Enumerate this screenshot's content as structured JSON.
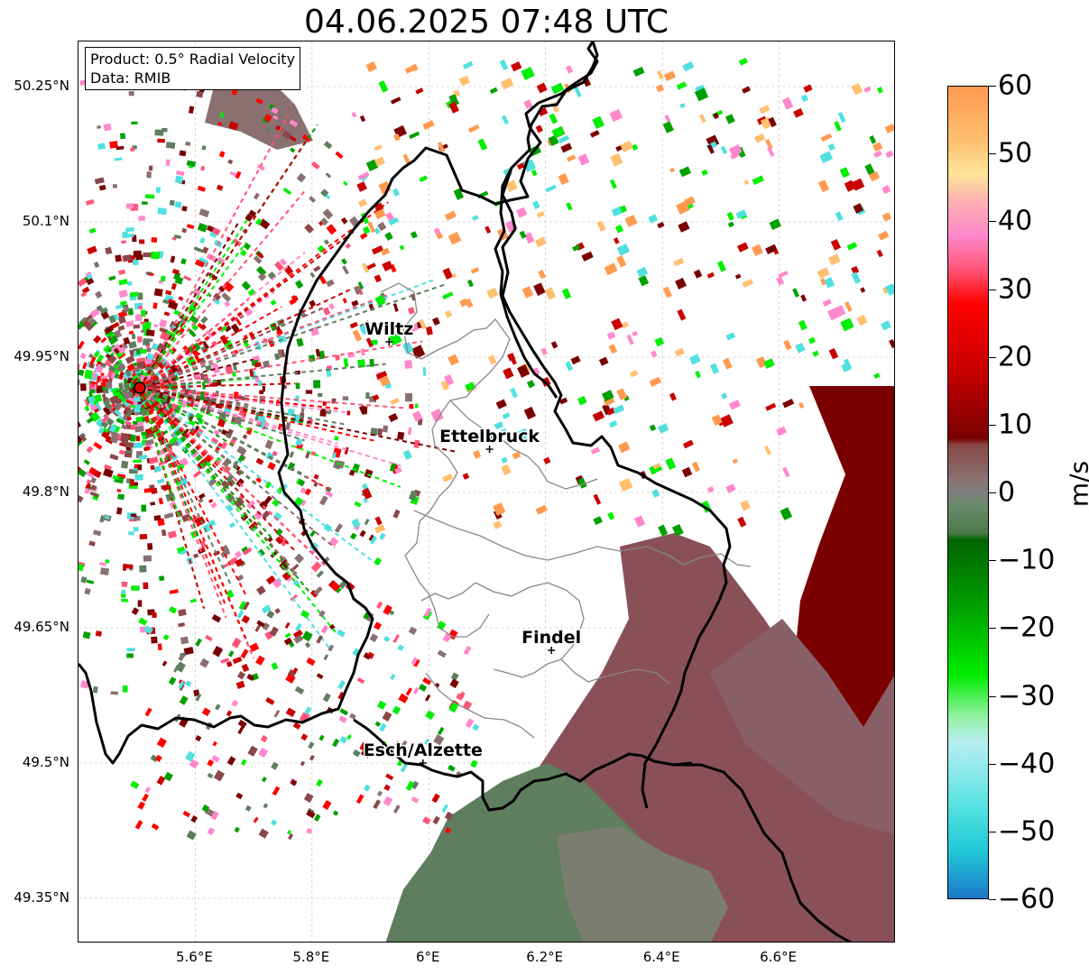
{
  "title": "04.06.2025 07:48 UTC",
  "info_box": {
    "line1": "Product: 0.5° Radial Velocity",
    "line2": "Data: RMIB"
  },
  "map": {
    "lon_range": [
      5.4,
      6.8
    ],
    "lat_range": [
      49.3,
      50.3
    ],
    "lon_ticks": [
      {
        "value": 5.6,
        "label": "5.6°E"
      },
      {
        "value": 5.8,
        "label": "5.8°E"
      },
      {
        "value": 6.0,
        "label": "6°E"
      },
      {
        "value": 6.2,
        "label": "6.2°E"
      },
      {
        "value": 6.4,
        "label": "6.4°E"
      },
      {
        "value": 6.6,
        "label": "6.6°E"
      }
    ],
    "lat_ticks": [
      {
        "value": 50.25,
        "label": "50.25°N"
      },
      {
        "value": 50.1,
        "label": "50.1°N"
      },
      {
        "value": 49.95,
        "label": "49.95°N"
      },
      {
        "value": 49.8,
        "label": "49.8°N"
      },
      {
        "value": 49.65,
        "label": "49.65°N"
      },
      {
        "value": 49.5,
        "label": "49.5°N"
      },
      {
        "value": 49.35,
        "label": "49.35°N"
      }
    ],
    "radar_site": {
      "lon": 5.505,
      "lat": 49.916
    },
    "cities": [
      {
        "name": "Wiltz",
        "lon": 5.932,
        "lat": 49.967
      },
      {
        "name": "Ettelbruck",
        "lon": 6.104,
        "lat": 49.848
      },
      {
        "name": "Findel",
        "lon": 6.21,
        "lat": 49.625
      },
      {
        "name": "Esch/Alzette",
        "lon": 5.99,
        "lat": 49.5
      }
    ]
  },
  "colorbar": {
    "label": "m/s",
    "min": -60,
    "max": 60,
    "ticks": [
      {
        "value": 60,
        "label": "60"
      },
      {
        "value": 50,
        "label": "50"
      },
      {
        "value": 40,
        "label": "40"
      },
      {
        "value": 30,
        "label": "30"
      },
      {
        "value": 20,
        "label": "20"
      },
      {
        "value": 10,
        "label": "10"
      },
      {
        "value": 0,
        "label": "0"
      },
      {
        "value": -10,
        "label": "−10"
      },
      {
        "value": -20,
        "label": "−20"
      },
      {
        "value": -30,
        "label": "−30"
      },
      {
        "value": -40,
        "label": "−40"
      },
      {
        "value": -50,
        "label": "−50"
      },
      {
        "value": -60,
        "label": "−60"
      }
    ],
    "stops": [
      {
        "v": 60,
        "color": "#ff9a50"
      },
      {
        "v": 52,
        "color": "#ffc070"
      },
      {
        "v": 47,
        "color": "#ffe49a"
      },
      {
        "v": 43,
        "color": "#ffb0b0"
      },
      {
        "v": 38,
        "color": "#ff88cc"
      },
      {
        "v": 33,
        "color": "#ff5577"
      },
      {
        "v": 28,
        "color": "#ff0000"
      },
      {
        "v": 18,
        "color": "#c80000"
      },
      {
        "v": 8,
        "color": "#780000"
      },
      {
        "v": 7,
        "color": "#8a4848"
      },
      {
        "v": 2,
        "color": "#8a7070"
      },
      {
        "v": 0,
        "color": "#7f7f7f"
      },
      {
        "v": -2,
        "color": "#6a8a6a"
      },
      {
        "v": -6,
        "color": "#4c7a4c"
      },
      {
        "v": -7,
        "color": "#006400"
      },
      {
        "v": -17,
        "color": "#00a000"
      },
      {
        "v": -27,
        "color": "#00ee00"
      },
      {
        "v": -33,
        "color": "#90f0a0"
      },
      {
        "v": -37,
        "color": "#b8eef2"
      },
      {
        "v": -47,
        "color": "#50e0e0"
      },
      {
        "v": -53,
        "color": "#20c8d8"
      },
      {
        "v": -60,
        "color": "#1e78c8"
      }
    ]
  }
}
